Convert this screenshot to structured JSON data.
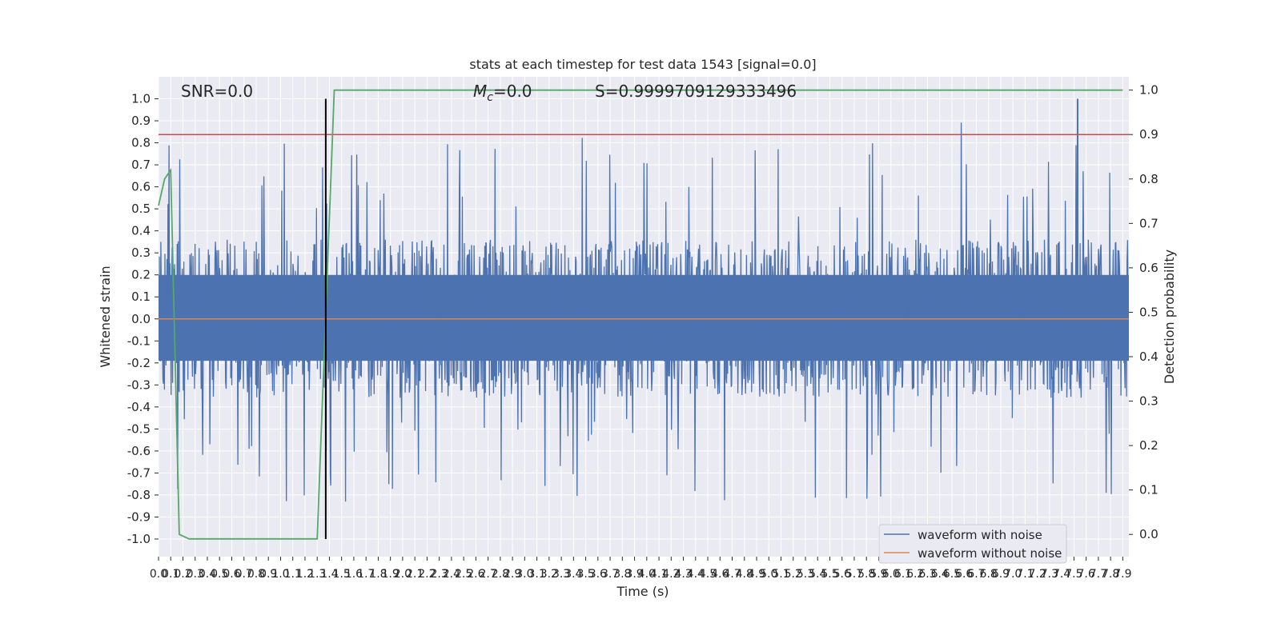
{
  "chart_data": {
    "type": "line",
    "title": "stats at each timestep for test data 1543 [signal=0.0]",
    "xlabel": "Time (s)",
    "ylabel": "Whitened strain",
    "ylabel_right": "Detection probability",
    "xlim": [
      0.0,
      7.95
    ],
    "ylim": [
      -1.08,
      1.1
    ],
    "ylim_right": [
      -0.05,
      1.03
    ],
    "xticks_step": 0.1,
    "xticks_count": 80,
    "yticks": [
      1.0,
      0.9,
      0.8,
      0.7,
      0.6,
      0.5,
      0.4,
      0.3,
      0.2,
      0.1,
      0.0,
      -0.1,
      -0.2,
      -0.3,
      -0.4,
      -0.5,
      -0.6,
      -0.7,
      -0.8,
      -0.9,
      -1.0
    ],
    "yticks_right": [
      1.0,
      0.9,
      0.8,
      0.7,
      0.6,
      0.5,
      0.4,
      0.3,
      0.2,
      0.1,
      0.0
    ],
    "grid": true,
    "annotations": {
      "snr": "SNR=0.0",
      "mc_symbol": "M",
      "mc_sub": "c",
      "mc_value": "=0.0",
      "s": "S=0.9999709129333496"
    },
    "threshold": 0.9,
    "marker_time": 1.37,
    "series": [
      {
        "name": "waveform with noise",
        "color": "#4c72b0",
        "axis": "left",
        "generated": "noise",
        "amplitude_envelope": 0.45,
        "peak_max": 1.0
      },
      {
        "name": "waveform without noise",
        "color": "#dd8452",
        "axis": "left",
        "values_constant": 0.0
      },
      {
        "name": "",
        "color": "#55a868",
        "axis": "right",
        "x": [
          0.0,
          0.05,
          0.1,
          0.17,
          0.25,
          0.5,
          1.0,
          1.25,
          1.3,
          1.37,
          1.44,
          1.5,
          2.0,
          4.0,
          6.0,
          7.9
        ],
        "values": [
          0.74,
          0.8,
          0.82,
          0.0,
          -0.01,
          -0.01,
          -0.01,
          -0.01,
          -0.01,
          0.5,
          1.0,
          1.0,
          1.0,
          1.0,
          1.0,
          1.0
        ]
      }
    ],
    "legend": {
      "position": "lower-right",
      "entries": [
        "waveform with noise",
        "waveform without noise"
      ]
    }
  },
  "colors": {
    "plot_background": "#eaeaf2",
    "grid": "#ffffff",
    "threshold_line": "#c44e52",
    "marker_line": "#000000"
  }
}
